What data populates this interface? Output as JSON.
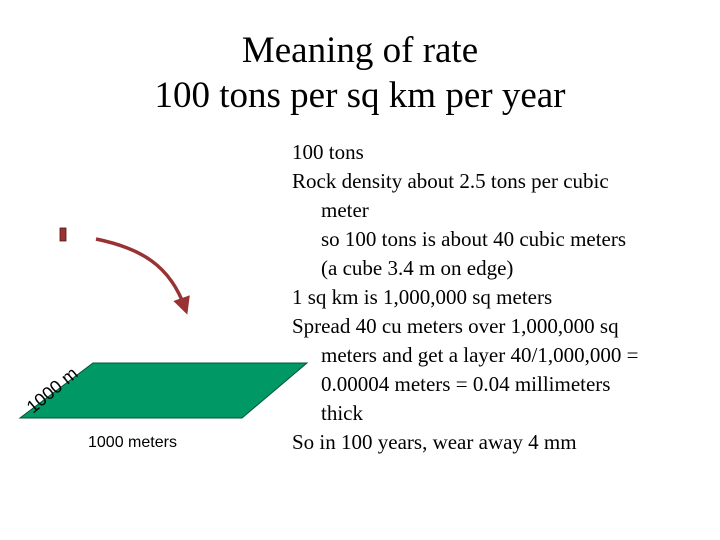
{
  "slide": {
    "title_line1": "Meaning of rate",
    "title_line2": "100 tons per sq km per year"
  },
  "diagram": {
    "side_label": "1000 m",
    "bottom_label": "1000 meters",
    "plate_color": "#009966",
    "arrow_color": "#993333",
    "block_color": "#993333"
  },
  "body": {
    "lines": [
      "100 tons",
      "Rock density about 2.5 tons per cubic",
      "meter",
      "so 100 tons is about 40 cubic meters",
      "(a cube 3.4 m on edge)",
      "1 sq km is 1,000,000 sq meters",
      "Spread 40 cu meters over 1,000,000 sq",
      "meters and get a layer 40/1,000,000 =",
      "0.00004 meters = 0.04 millimeters",
      "thick",
      "So in 100 years, wear away 4 mm"
    ]
  }
}
